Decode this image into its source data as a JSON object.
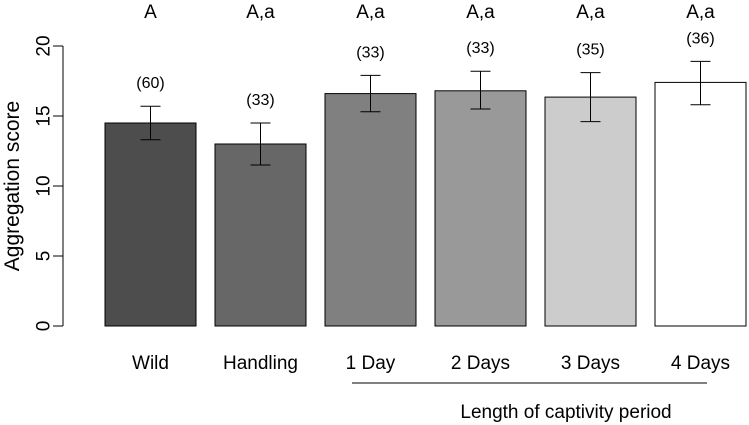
{
  "chart_data": {
    "type": "bar",
    "ylabel": "Aggregation score",
    "ylim": [
      0,
      20
    ],
    "yticks": [
      "0",
      "5",
      "10",
      "15",
      "20"
    ],
    "ytick_values": [
      0,
      5,
      10,
      15,
      20
    ],
    "categories": [
      "Wild",
      "Handling",
      "1 Day",
      "2 Days",
      "3 Days",
      "4 Days"
    ],
    "values": [
      14.5,
      13.0,
      16.6,
      16.8,
      16.35,
      17.4
    ],
    "error_low": [
      13.3,
      11.5,
      15.3,
      15.5,
      14.6,
      15.8
    ],
    "error_high": [
      15.7,
      14.5,
      17.9,
      18.2,
      18.1,
      18.9
    ],
    "sample_sizes": [
      "(60)",
      "(33)",
      "(33)",
      "(33)",
      "(35)",
      "(36)"
    ],
    "group_letters": [
      "A",
      "A,a",
      "A,a",
      "A,a",
      "A,a",
      "A,a"
    ],
    "bar_colors": [
      "#4d4d4d",
      "#676767",
      "#808080",
      "#999999",
      "#cccccc",
      "#ffffff"
    ],
    "sublabel": "Length of captivity period",
    "grid": false,
    "legend": "none"
  }
}
